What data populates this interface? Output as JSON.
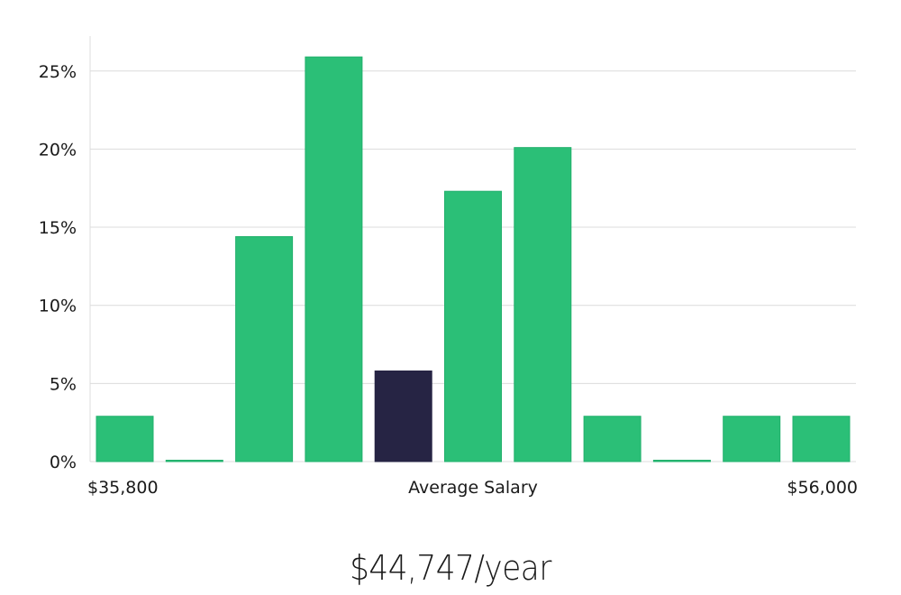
{
  "chart_data": {
    "type": "bar",
    "title": "",
    "xlabel": "Average Salary",
    "ylabel": "",
    "x_min_label": "$35,800",
    "x_max_label": "$56,000",
    "ylim": [
      0,
      0.27
    ],
    "y_ticks": [
      {
        "value": 0,
        "label": "0%"
      },
      {
        "value": 0.05,
        "label": "5%"
      },
      {
        "value": 0.1,
        "label": "10%"
      },
      {
        "value": 0.15,
        "label": "15%"
      },
      {
        "value": 0.2,
        "label": "20%"
      },
      {
        "value": 0.25,
        "label": "25%"
      }
    ],
    "grid": true,
    "values": [
      0.029,
      0.0,
      0.144,
      0.259,
      0.058,
      0.173,
      0.201,
      0.029,
      0.0,
      0.029,
      0.029
    ],
    "highlight_index": 4,
    "colors": {
      "bar": "#2bbf77",
      "bar_stroke": "#22b06c",
      "highlight": "#262444",
      "grid": "#dcdcdc",
      "axis": "#dcdcdc"
    }
  },
  "headline": {
    "salary_text": "$44,747/year"
  }
}
